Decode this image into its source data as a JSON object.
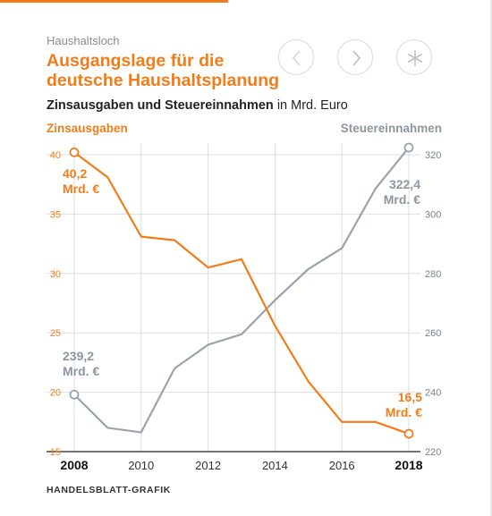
{
  "header": {
    "kicker": "Haushaltsloch",
    "headline": "Ausgangslage für die deutsche Haushaltsplanung",
    "subtitle_bold": "Zinsausgaben und Steuereinnahmen",
    "subtitle_rest": " in Mrd. Euro"
  },
  "nav": {
    "prev_icon": "chevron-left-icon",
    "next_icon": "chevron-right-icon",
    "extra_icon": "asterisk-icon"
  },
  "footer": {
    "credit": "HANDELSBLATT-GRAFIK"
  },
  "colors": {
    "accent": "#f07d1a",
    "grey_series": "#9aa3ad",
    "grid": "#dedede"
  },
  "chart_data": {
    "type": "line",
    "x": [
      2008,
      2009,
      2010,
      2011,
      2012,
      2013,
      2014,
      2015,
      2016,
      2017,
      2018
    ],
    "xlim": [
      2008,
      2018
    ],
    "x_ticks": [
      "2008",
      "2010",
      "2012",
      "2014",
      "2016",
      "2018"
    ],
    "x_ticks_bold": [
      "2008",
      "2018"
    ],
    "grid": true,
    "series": [
      {
        "name": "Zinsausgaben",
        "axis": "left",
        "color": "#f07d1a",
        "values": [
          40.2,
          38.1,
          33.1,
          32.8,
          30.5,
          31.2,
          25.6,
          20.9,
          17.5,
          17.5,
          16.5
        ],
        "ylim": [
          15,
          40
        ],
        "y_ticks": [
          "15",
          "20",
          "25",
          "30",
          "35",
          "40"
        ],
        "annotations": [
          {
            "index": 0,
            "line1": "40,2",
            "line2": "Mrd. €"
          },
          {
            "index": 10,
            "line1": "16,5",
            "line2": "Mrd. €"
          }
        ]
      },
      {
        "name": "Steuereinnahmen",
        "axis": "right",
        "color": "#9aa3ad",
        "values": [
          239.2,
          228.0,
          226.5,
          248.0,
          256.0,
          259.5,
          271.0,
          281.5,
          288.5,
          308.5,
          322.4
        ],
        "ylim": [
          220,
          320
        ],
        "y_ticks": [
          "220",
          "240",
          "260",
          "280",
          "300",
          "320"
        ],
        "annotations": [
          {
            "index": 0,
            "line1": "239,2",
            "line2": "Mrd. €"
          },
          {
            "index": 10,
            "line1": "322,4",
            "line2": "Mrd. €"
          }
        ]
      }
    ]
  }
}
